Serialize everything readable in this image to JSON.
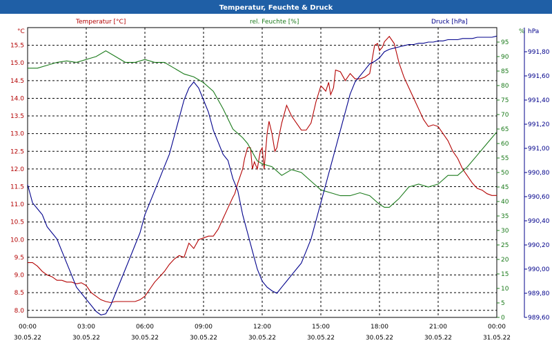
{
  "chart_data": {
    "type": "line",
    "title": "Temperatur, Feuchte & Druck",
    "colors": {
      "title_bar": "#1f5fa6",
      "temperature": "#b30000",
      "humidity": "#1a7a1a",
      "pressure": "#00008b",
      "grid": "#000000"
    },
    "grid": true,
    "x_axis": {
      "range_hours": [
        0,
        24
      ],
      "ticks": [
        {
          "time": "00:00",
          "date": "30.05.22"
        },
        {
          "time": "03:00",
          "date": "30.05.22"
        },
        {
          "time": "06:00",
          "date": "30.05.22"
        },
        {
          "time": "09:00",
          "date": "30.05.22"
        },
        {
          "time": "12:00",
          "date": "30.05.22"
        },
        {
          "time": "15:00",
          "date": "30.05.22"
        },
        {
          "time": "18:00",
          "date": "30.05.22"
        },
        {
          "time": "21:00",
          "date": "30.05.22"
        },
        {
          "time": "00:00",
          "date": "31.05.22"
        }
      ]
    },
    "axes": {
      "temperature": {
        "label": "Temperatur [°C]",
        "unit": "°C",
        "range": [
          7.8,
          16.0
        ],
        "ticks": [
          "8.0",
          "8.5",
          "9.0",
          "9.5",
          "10.0",
          "10.5",
          "11.0",
          "11.5",
          "12.0",
          "12.5",
          "13.0",
          "13.5",
          "14.0",
          "14.5",
          "15.0",
          "15.5"
        ]
      },
      "humidity": {
        "label": "rel. Feuchte [%]",
        "unit": "%",
        "range": [
          0,
          100
        ],
        "ticks": [
          "0",
          "5",
          "10",
          "15",
          "20",
          "25",
          "30",
          "35",
          "40",
          "45",
          "50",
          "55",
          "60",
          "65",
          "70",
          "75",
          "80",
          "85",
          "90",
          "95"
        ]
      },
      "pressure": {
        "label": "Druck [hPa]",
        "unit": "hPa",
        "range": [
          989.6,
          992.0
        ],
        "ticks": [
          "989,60",
          "989,80",
          "990,00",
          "990,20",
          "990,40",
          "990,60",
          "990,80",
          "991,00",
          "991,20",
          "991,40",
          "991,60",
          "991,80"
        ]
      }
    },
    "series": [
      {
        "name": "Temperatur [°C]",
        "axis": "temperature",
        "x": [
          0,
          0.25,
          0.5,
          0.75,
          1,
          1.25,
          1.5,
          1.75,
          2,
          2.25,
          2.5,
          2.75,
          3,
          3.25,
          3.5,
          3.75,
          4,
          4.25,
          4.5,
          5,
          5.5,
          5.75,
          6,
          6.25,
          6.5,
          6.75,
          7,
          7.25,
          7.5,
          7.75,
          8,
          8.25,
          8.5,
          8.75,
          9,
          9.25,
          9.5,
          9.75,
          10,
          10.25,
          10.5,
          10.6,
          10.75,
          11,
          11.1,
          11.25,
          11.4,
          11.5,
          11.6,
          11.75,
          11.9,
          12,
          12.1,
          12.25,
          12.35,
          12.5,
          12.65,
          12.75,
          12.85,
          13,
          13.25,
          13.5,
          13.75,
          14,
          14.25,
          14.5,
          14.75,
          15,
          15.1,
          15.25,
          15.4,
          15.5,
          15.65,
          15.75,
          16,
          16.25,
          16.5,
          16.75,
          17,
          17.25,
          17.5,
          17.75,
          17.9,
          18,
          18.15,
          18.25,
          18.5,
          18.75,
          19,
          19.25,
          19.5,
          19.75,
          20,
          20.25,
          20.5,
          20.75,
          21,
          21.25,
          21.5,
          21.75,
          22,
          22.25,
          22.5,
          22.75,
          23,
          23.25,
          23.5,
          23.75,
          24
        ],
        "values": [
          9.35,
          9.35,
          9.25,
          9.1,
          9.0,
          8.95,
          8.85,
          8.85,
          8.8,
          8.8,
          8.75,
          8.78,
          8.7,
          8.5,
          8.4,
          8.3,
          8.25,
          8.22,
          8.25,
          8.25,
          8.25,
          8.3,
          8.4,
          8.6,
          8.8,
          8.95,
          9.1,
          9.3,
          9.45,
          9.55,
          9.5,
          9.9,
          9.75,
          10.0,
          10.05,
          10.1,
          10.1,
          10.3,
          10.6,
          10.9,
          11.2,
          11.3,
          11.6,
          12.0,
          12.3,
          12.6,
          12.6,
          12.0,
          12.2,
          12.0,
          12.5,
          12.6,
          12.0,
          13.0,
          13.35,
          13.0,
          12.5,
          12.6,
          12.9,
          13.3,
          13.8,
          13.5,
          13.3,
          13.1,
          13.1,
          13.3,
          13.9,
          14.35,
          14.3,
          14.2,
          14.45,
          14.1,
          14.3,
          14.8,
          14.75,
          14.5,
          14.7,
          14.55,
          14.55,
          14.6,
          14.7,
          15.5,
          15.55,
          15.35,
          15.45,
          15.6,
          15.75,
          15.55,
          15.0,
          14.6,
          14.3,
          14.0,
          13.7,
          13.4,
          13.2,
          13.25,
          13.2,
          13.0,
          12.8,
          12.5,
          12.3,
          12.0,
          11.8,
          11.6,
          11.45,
          11.4,
          11.3,
          11.25,
          11.25
        ]
      },
      {
        "name": "rel. Feuchte [%]",
        "axis": "humidity",
        "x": [
          0,
          0.5,
          1,
          1.5,
          2,
          2.5,
          3,
          3.5,
          4,
          4.5,
          5,
          5.5,
          6,
          6.5,
          7,
          7.5,
          8,
          8.5,
          9,
          9.5,
          10,
          10.5,
          11,
          11.25,
          11.5,
          11.75,
          12,
          12.5,
          13,
          13.5,
          14,
          14.5,
          15,
          15.5,
          16,
          16.5,
          17,
          17.5,
          18,
          18.25,
          18.5,
          19,
          19.5,
          20,
          20.5,
          21,
          21.5,
          22,
          22.5,
          23,
          23.5,
          24
        ],
        "values": [
          86,
          86,
          87,
          88,
          88.5,
          88,
          89,
          90,
          92,
          90,
          88,
          88,
          89,
          88,
          88,
          86,
          84,
          83,
          81,
          78,
          72,
          65,
          62,
          60,
          57,
          54,
          53,
          52,
          49,
          51,
          50,
          47,
          44,
          43,
          42,
          42,
          43,
          42,
          39,
          38,
          38,
          41,
          45,
          46,
          45,
          46,
          49,
          49,
          52,
          56,
          60,
          64
        ]
      },
      {
        "name": "Druck [hPa]",
        "axis": "pressure",
        "x": [
          0,
          0.25,
          0.5,
          0.75,
          1,
          1.25,
          1.5,
          1.75,
          2,
          2.25,
          2.5,
          2.75,
          3,
          3.25,
          3.5,
          3.75,
          4,
          4.25,
          4.5,
          4.75,
          5,
          5.25,
          5.5,
          5.75,
          6,
          6.25,
          6.5,
          6.75,
          7,
          7.25,
          7.5,
          7.75,
          8,
          8.25,
          8.5,
          8.75,
          9,
          9.25,
          9.5,
          9.75,
          10,
          10.25,
          10.5,
          10.75,
          11,
          11.25,
          11.5,
          11.75,
          12,
          12.25,
          12.5,
          12.75,
          13,
          13.25,
          13.5,
          13.75,
          14,
          14.25,
          14.5,
          14.75,
          15,
          15.25,
          15.5,
          15.75,
          16,
          16.25,
          16.5,
          16.75,
          17,
          17.25,
          17.5,
          17.75,
          18,
          18.25,
          18.5,
          18.75,
          19,
          19.25,
          19.5,
          19.75,
          20,
          20.25,
          20.5,
          20.75,
          21,
          21.25,
          21.5,
          21.75,
          22,
          22.25,
          22.5,
          22.75,
          23,
          23.25,
          23.5,
          23.75,
          24
        ],
        "values": [
          990.7,
          990.55,
          990.5,
          990.45,
          990.35,
          990.3,
          990.25,
          990.15,
          990.05,
          989.95,
          989.85,
          989.8,
          989.75,
          989.7,
          989.65,
          989.62,
          989.63,
          989.7,
          989.8,
          989.9,
          990.0,
          990.1,
          990.2,
          990.3,
          990.45,
          990.55,
          990.65,
          990.75,
          990.85,
          990.95,
          991.1,
          991.25,
          991.4,
          991.5,
          991.55,
          991.5,
          991.4,
          991.3,
          991.15,
          991.05,
          990.95,
          990.9,
          990.75,
          990.65,
          990.45,
          990.3,
          990.15,
          990.0,
          989.9,
          989.85,
          989.82,
          989.8,
          989.85,
          989.9,
          989.95,
          990.0,
          990.05,
          990.15,
          990.25,
          990.4,
          990.55,
          990.7,
          990.85,
          991.0,
          991.15,
          991.3,
          991.45,
          991.55,
          991.6,
          991.65,
          991.7,
          991.72,
          991.75,
          991.8,
          991.82,
          991.83,
          991.84,
          991.85,
          991.86,
          991.86,
          991.87,
          991.87,
          991.88,
          991.88,
          991.89,
          991.89,
          991.9,
          991.9,
          991.9,
          991.91,
          991.91,
          991.91,
          991.92,
          991.92,
          991.92,
          991.92,
          991.93
        ]
      }
    ]
  }
}
